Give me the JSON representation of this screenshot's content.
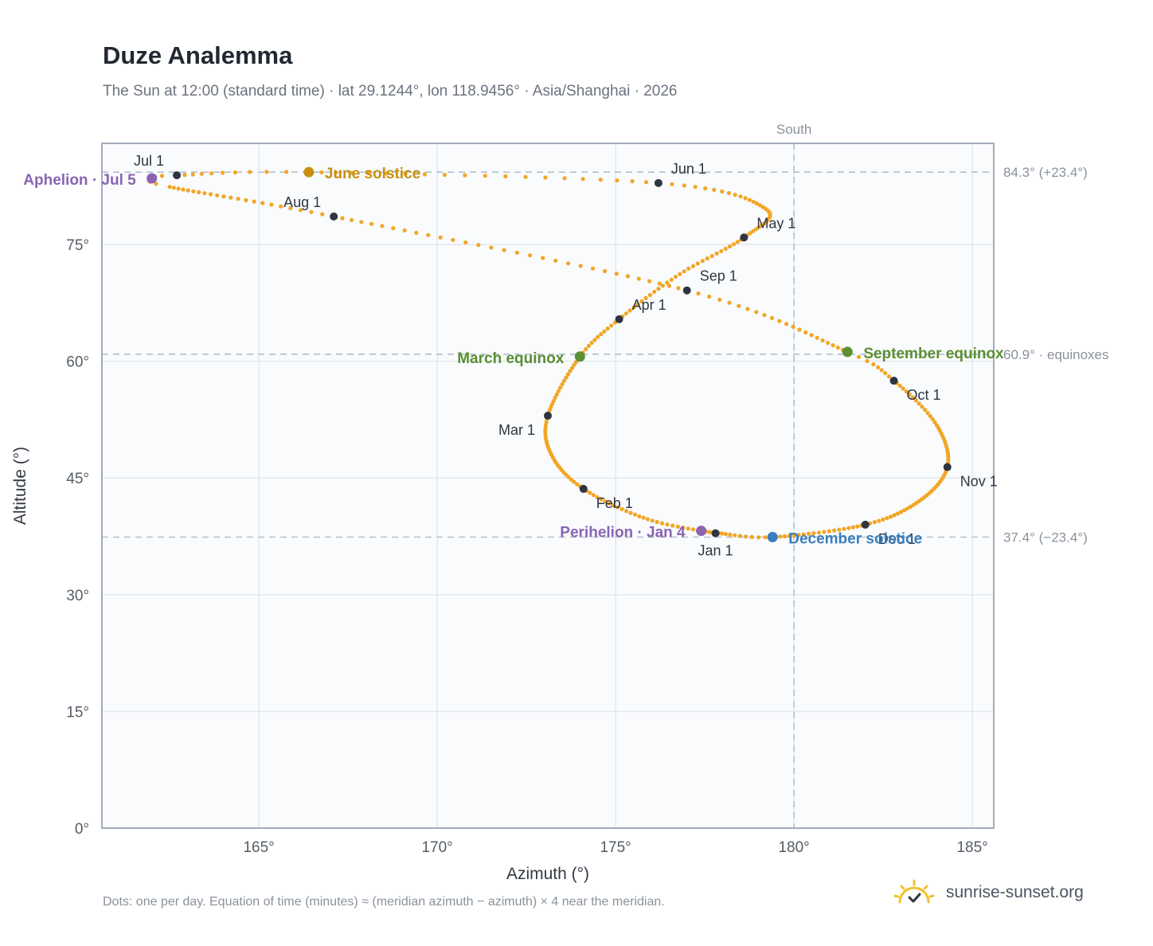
{
  "header": {
    "title": "Duze Analemma",
    "subtitle": "The Sun at 12:00 (standard time) · lat 29.1244°, lon 118.9456° · Asia/Shanghai · 2026"
  },
  "footer": {
    "note": "Dots: one per day. Equation of time (minutes) ≈ (meridian azimuth − azimuth) × 4 near the meridian.",
    "brand": "sunrise-sunset.org"
  },
  "colors": {
    "path": "#f2a626",
    "month_dot": "#2f3540",
    "equinox": "#5b8f32",
    "june_solstice": "#c9900f",
    "december_solstice": "#3a7fc0",
    "apsis": "#8a64b3",
    "reference_line": "#b4bfcc",
    "grid": "#e4e8ee",
    "plot_bg": "#f9fbfd",
    "brand_sun": "#f2c12e"
  },
  "chart_data": {
    "type": "scatter",
    "xlabel": "Azimuth (°)",
    "ylabel": "Altitude (°)",
    "xlim": [
      160.6,
      185.6
    ],
    "ylim": [
      0,
      88
    ],
    "x_ticks": [
      165,
      170,
      175,
      180,
      185
    ],
    "x_tick_labels": [
      "165°",
      "170°",
      "175°",
      "180°",
      "185°"
    ],
    "y_ticks": [
      0,
      15,
      30,
      45,
      60,
      75
    ],
    "y_tick_labels": [
      "0°",
      "15°",
      "30°",
      "45°",
      "60°",
      "75°"
    ],
    "grid": true,
    "south_line": {
      "azimuth": 180,
      "label": "South"
    },
    "reference_lines": [
      {
        "altitude": 84.3,
        "label": "84.3° (+23.4°)"
      },
      {
        "altitude": 60.9,
        "label": "60.9° · equinoxes"
      },
      {
        "altitude": 37.4,
        "label": "37.4° (−23.4°)"
      }
    ],
    "path_control_points": [
      {
        "month": 1,
        "day": 1,
        "az": 177.8,
        "alt": 37.9
      },
      {
        "month": 1,
        "day": 16,
        "az": 175.9,
        "alt": 39.7
      },
      {
        "month": 2,
        "day": 1,
        "az": 174.1,
        "alt": 43.6
      },
      {
        "month": 2,
        "day": 15,
        "az": 173.2,
        "alt": 48.0
      },
      {
        "month": 3,
        "day": 1,
        "az": 173.1,
        "alt": 53.0
      },
      {
        "month": 3,
        "day": 20,
        "az": 174.0,
        "alt": 60.6
      },
      {
        "month": 4,
        "day": 1,
        "az": 175.1,
        "alt": 65.4
      },
      {
        "month": 4,
        "day": 16,
        "az": 176.8,
        "alt": 71.2
      },
      {
        "month": 5,
        "day": 1,
        "az": 178.6,
        "alt": 75.9
      },
      {
        "month": 5,
        "day": 16,
        "az": 179.2,
        "alt": 79.6
      },
      {
        "month": 6,
        "day": 1,
        "az": 176.2,
        "alt": 82.9
      },
      {
        "month": 6,
        "day": 21,
        "az": 166.4,
        "alt": 84.3
      },
      {
        "month": 7,
        "day": 1,
        "az": 162.7,
        "alt": 83.9
      },
      {
        "month": 7,
        "day": 5,
        "az": 162.0,
        "alt": 83.5
      },
      {
        "month": 7,
        "day": 10,
        "az": 162.5,
        "alt": 82.4
      },
      {
        "month": 8,
        "day": 1,
        "az": 167.1,
        "alt": 78.6
      },
      {
        "month": 9,
        "day": 1,
        "az": 177.0,
        "alt": 69.1
      },
      {
        "month": 9,
        "day": 23,
        "az": 181.5,
        "alt": 61.2
      },
      {
        "month": 10,
        "day": 1,
        "az": 182.8,
        "alt": 57.5
      },
      {
        "month": 10,
        "day": 16,
        "az": 184.0,
        "alt": 51.8
      },
      {
        "month": 11,
        "day": 1,
        "az": 184.3,
        "alt": 46.4
      },
      {
        "month": 11,
        "day": 16,
        "az": 183.5,
        "alt": 42.0
      },
      {
        "month": 12,
        "day": 1,
        "az": 182.0,
        "alt": 39.0
      },
      {
        "month": 12,
        "day": 21,
        "az": 179.4,
        "alt": 37.4
      },
      {
        "month": 12,
        "day": 31,
        "az": 177.9,
        "alt": 37.9
      }
    ],
    "month_markers": [
      {
        "label": "Jan 1",
        "az": 177.8,
        "alt": 37.9,
        "anchor": "below"
      },
      {
        "label": "Feb 1",
        "az": 174.1,
        "alt": 43.6,
        "anchor": "below-right"
      },
      {
        "label": "Mar 1",
        "az": 173.1,
        "alt": 53.0,
        "anchor": "below-left"
      },
      {
        "label": "Apr 1",
        "az": 175.1,
        "alt": 65.4,
        "anchor": "above-right"
      },
      {
        "label": "May 1",
        "az": 178.6,
        "alt": 75.9,
        "anchor": "above-right"
      },
      {
        "label": "Jun 1",
        "az": 176.2,
        "alt": 82.9,
        "anchor": "above-right"
      },
      {
        "label": "Jul 1",
        "az": 162.7,
        "alt": 83.9,
        "anchor": "above-left"
      },
      {
        "label": "Aug 1",
        "az": 167.1,
        "alt": 78.6,
        "anchor": "above-left"
      },
      {
        "label": "Sep 1",
        "az": 177.0,
        "alt": 69.1,
        "anchor": "above-right"
      },
      {
        "label": "Oct 1",
        "az": 182.8,
        "alt": 57.5,
        "anchor": "below-right"
      },
      {
        "label": "Nov 1",
        "az": 184.3,
        "alt": 46.4,
        "anchor": "below-right"
      },
      {
        "label": "Dec 1",
        "az": 182.0,
        "alt": 39.0,
        "anchor": "below-right"
      }
    ],
    "events": [
      {
        "label": "June solstice",
        "az": 166.4,
        "alt": 84.3,
        "color_key": "june_solstice",
        "anchor": "right"
      },
      {
        "label": "March equinox",
        "az": 174.0,
        "alt": 60.6,
        "color_key": "equinox",
        "anchor": "left"
      },
      {
        "label": "September equinox",
        "az": 181.5,
        "alt": 61.2,
        "color_key": "equinox",
        "anchor": "right"
      },
      {
        "label": "December solstice",
        "az": 179.4,
        "alt": 37.4,
        "color_key": "december_solstice",
        "anchor": "right"
      },
      {
        "label": "Aphelion · Jul 5",
        "az": 162.0,
        "alt": 83.5,
        "color_key": "apsis",
        "anchor": "left"
      },
      {
        "label": "Perihelion · Jan 4",
        "az": 177.4,
        "alt": 38.2,
        "color_key": "apsis",
        "anchor": "left"
      }
    ]
  }
}
